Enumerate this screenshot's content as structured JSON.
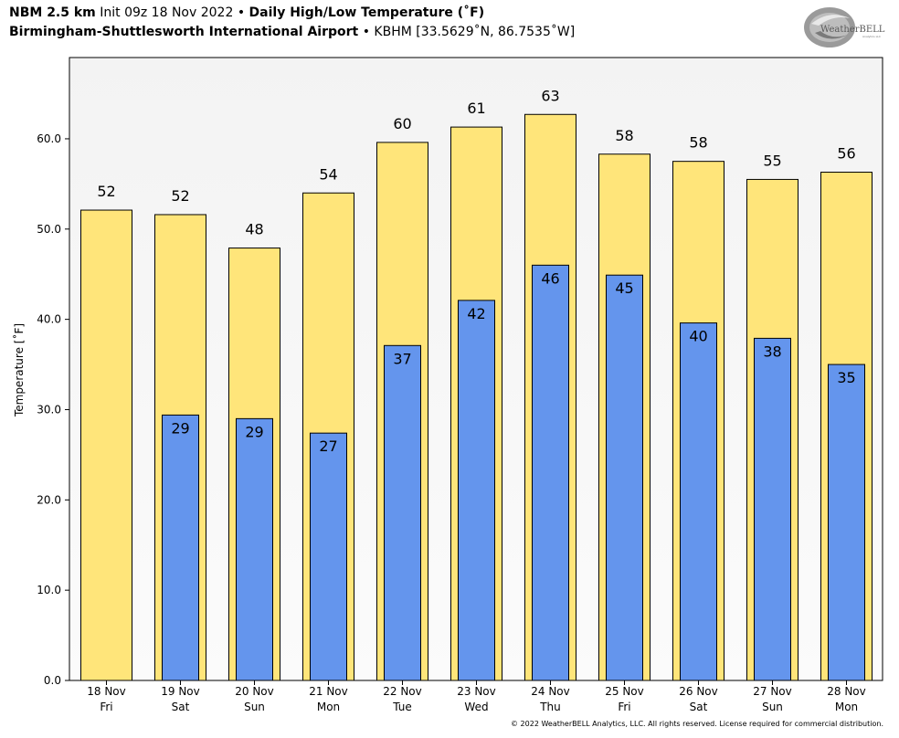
{
  "header": {
    "model": "NBM 2.5 km",
    "init": "Init 09z 18 Nov 2022",
    "sep": "•",
    "product": "Daily High/Low Temperature (˚F)",
    "station_name": "Birmingham-Shuttlesworth International Airport",
    "station_info": "KBHM [33.5629˚N, 86.7535˚W]"
  },
  "logo": {
    "text": "WeatherBELL",
    "sub": "Analytics LLC"
  },
  "footer": "© 2022 WeatherBELL Analytics, LLC. All rights reserved. License required for commercial distribution.",
  "colors": {
    "high": "#ffe57a",
    "low": "#6495ed",
    "plot_bg_top": "#f3f3f3",
    "plot_bg_bottom": "#fbfbfb"
  },
  "chart_data": {
    "type": "bar",
    "ylabel": "Temperature [˚F]",
    "ylim": [
      0,
      69
    ],
    "yticks": [
      0,
      10,
      20,
      30,
      40,
      50,
      60
    ],
    "ytick_labels": [
      "0.0",
      "10.0",
      "20.0",
      "30.0",
      "40.0",
      "50.0",
      "60.0"
    ],
    "categories": [
      {
        "date": "18 Nov",
        "day": "Fri"
      },
      {
        "date": "19 Nov",
        "day": "Sat"
      },
      {
        "date": "20 Nov",
        "day": "Sun"
      },
      {
        "date": "21 Nov",
        "day": "Mon"
      },
      {
        "date": "22 Nov",
        "day": "Tue"
      },
      {
        "date": "23 Nov",
        "day": "Wed"
      },
      {
        "date": "24 Nov",
        "day": "Thu"
      },
      {
        "date": "25 Nov",
        "day": "Fri"
      },
      {
        "date": "26 Nov",
        "day": "Sat"
      },
      {
        "date": "27 Nov",
        "day": "Sun"
      },
      {
        "date": "28 Nov",
        "day": "Mon"
      }
    ],
    "series": [
      {
        "values": [
          52.1,
          51.6,
          47.9,
          54.0,
          59.6,
          61.3,
          62.7,
          58.3,
          57.5,
          55.5,
          56.3
        ],
        "labels": [
          "52",
          "52",
          "48",
          "54",
          "60",
          "61",
          "63",
          "58",
          "58",
          "55",
          "56"
        ]
      },
      {
        "values": [
          null,
          29.4,
          29.0,
          27.4,
          37.1,
          42.1,
          46.0,
          44.9,
          39.6,
          37.9,
          35.0
        ],
        "labels": [
          "",
          "29",
          "29",
          "27",
          "37",
          "42",
          "46",
          "45",
          "40",
          "38",
          "35"
        ]
      }
    ]
  }
}
